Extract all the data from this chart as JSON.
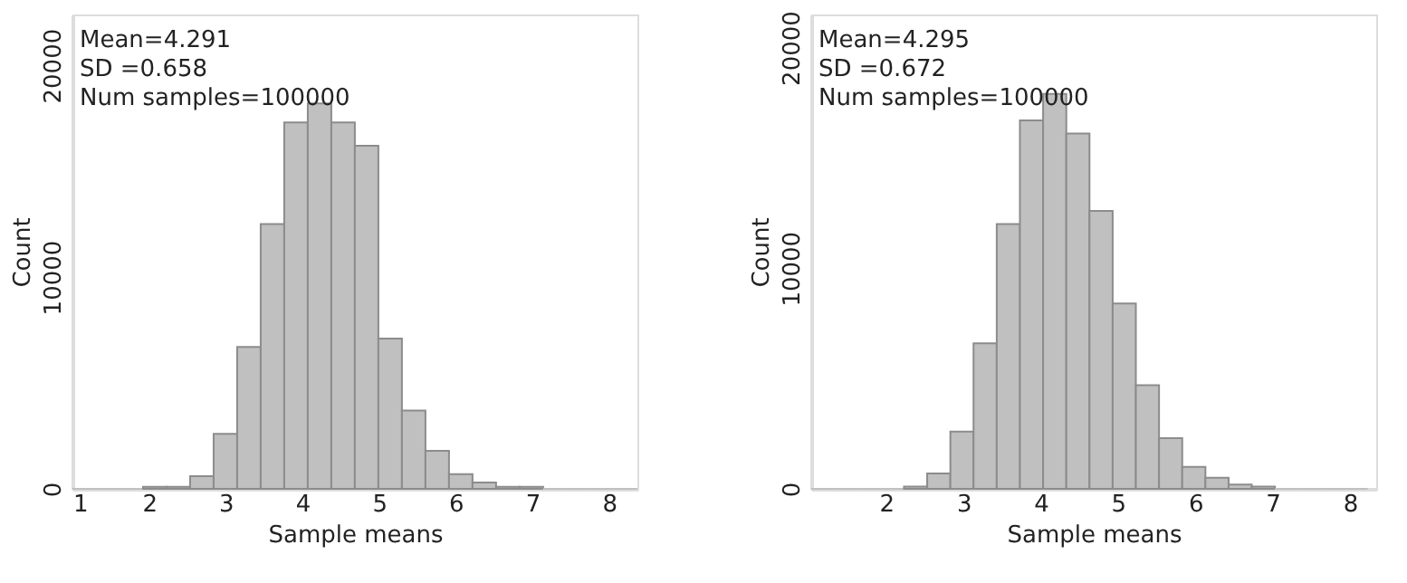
{
  "chart_data": [
    {
      "type": "histogram",
      "xlabel": "Sample means",
      "ylabel": "Count",
      "bins": [
        1,
        1.307,
        1.614,
        1.921,
        2.228,
        2.535,
        2.842,
        3.149,
        3.456,
        3.763,
        4.07,
        4.377,
        4.684,
        4.991,
        5.298,
        5.605,
        5.912,
        6.219,
        6.526,
        6.833,
        7.14,
        7.447,
        7.754,
        8.061,
        8.368
      ],
      "values": [
        0,
        0,
        0,
        100,
        100,
        600,
        2600,
        6700,
        12500,
        17300,
        18200,
        17300,
        16200,
        7100,
        3700,
        1800,
        700,
        300,
        100,
        100,
        0,
        0,
        0,
        0
      ],
      "color": "#c0c0c0",
      "xlim": [
        1,
        8.37
      ],
      "ylim": [
        0,
        22400
      ],
      "xticks": [
        1,
        2,
        3,
        4,
        5,
        6,
        7,
        8
      ],
      "yticks": [
        0,
        10000,
        20000
      ],
      "grid": false,
      "annotations": [
        "Mean=4.291",
        "SD =0.658",
        "Num samples=100000"
      ]
    },
    {
      "type": "histogram",
      "xlabel": "Sample means",
      "ylabel": "Count",
      "bins": [
        1.03,
        1.33,
        1.63,
        1.93,
        2.23,
        2.53,
        2.83,
        3.13,
        3.43,
        3.73,
        4.03,
        4.33,
        4.63,
        4.93,
        5.23,
        5.53,
        5.83,
        6.13,
        6.43,
        6.73,
        7.03,
        7.33,
        7.63,
        7.93,
        8.23
      ],
      "values": [
        0,
        0,
        0,
        0,
        100,
        700,
        2600,
        6600,
        12000,
        16700,
        17900,
        16100,
        12600,
        8400,
        4700,
        2300,
        1000,
        500,
        200,
        100,
        0,
        0,
        0,
        0
      ],
      "color": "#c0c0c0",
      "xlim": [
        1.03,
        8.34
      ],
      "ylim": [
        0,
        21500
      ],
      "xticks": [
        2,
        3,
        4,
        5,
        6,
        7,
        8
      ],
      "yticks": [
        0,
        10000,
        20000
      ],
      "grid": false,
      "annotations": [
        "Mean=4.295",
        "SD =0.672",
        "Num samples=100000"
      ]
    }
  ]
}
